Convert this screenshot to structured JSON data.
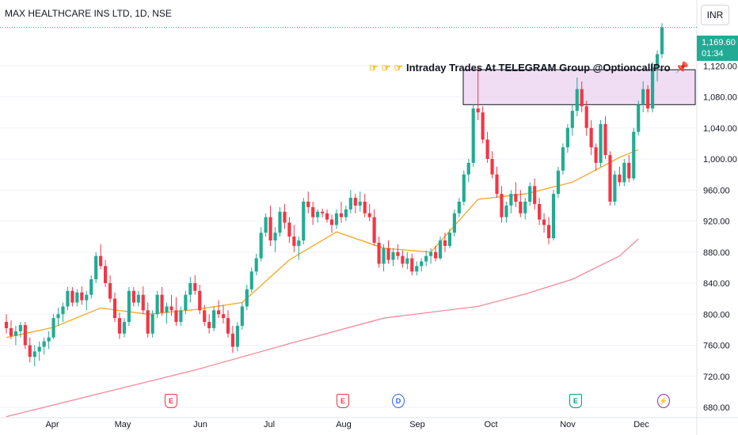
{
  "header": {
    "symbol_title": "MAX HEALTHCARE INS LTD, 1D, NSE",
    "currency_button": "INR"
  },
  "price_badge": {
    "price": "1,169.60",
    "countdown": "01:34"
  },
  "annotation": {
    "text": "Intraday Trades At TELEGRAM Group @OptioncallPro"
  },
  "events": [
    {
      "label": "E",
      "type": "earnings",
      "color": "#f23645"
    },
    {
      "label": "E",
      "type": "earnings",
      "color": "#f23645"
    },
    {
      "label": "D",
      "type": "dividend",
      "color": "#2962ff"
    },
    {
      "label": "E",
      "type": "earnings",
      "color": "#089981"
    },
    {
      "label": "⚡",
      "type": "split",
      "color": "#9c27b0"
    }
  ],
  "colors": {
    "up": "#22ab94",
    "down": "#f23645",
    "ma_fast": "#f5a623",
    "ma_slow": "#f28b9b",
    "zone_fill": "#ecd3f0",
    "grid": "#f0f3fa"
  },
  "chart_data": {
    "type": "candlestick",
    "title": "MAX HEALTHCARE INS LTD, 1D, NSE",
    "y_axis": {
      "ticks": [
        "1,120.00",
        "1,080.00",
        "1,040.00",
        "1,000.00",
        "960.00",
        "920.00",
        "880.00",
        "840.00",
        "800.00",
        "760.00",
        "720.00",
        "680.00"
      ],
      "range": [
        665,
        1190
      ]
    },
    "x_axis": {
      "labels": [
        "Apr",
        "May",
        "Jun",
        "Jul",
        "Aug",
        "Sep",
        "Oct",
        "Nov",
        "Dec"
      ]
    },
    "last_price": 1169.6,
    "resistance_zone": [
      1070,
      1115
    ],
    "candles": [
      [
        790,
        800,
        775,
        782
      ],
      [
        782,
        792,
        768,
        772
      ],
      [
        772,
        785,
        760,
        778
      ],
      [
        778,
        790,
        770,
        786
      ],
      [
        786,
        790,
        755,
        760
      ],
      [
        760,
        770,
        738,
        745
      ],
      [
        745,
        760,
        733,
        752
      ],
      [
        752,
        765,
        740,
        758
      ],
      [
        758,
        770,
        748,
        765
      ],
      [
        765,
        778,
        755,
        770
      ],
      [
        770,
        800,
        768,
        795
      ],
      [
        795,
        808,
        785,
        800
      ],
      [
        800,
        815,
        790,
        810
      ],
      [
        810,
        835,
        805,
        830
      ],
      [
        830,
        835,
        810,
        815
      ],
      [
        815,
        832,
        810,
        828
      ],
      [
        828,
        836,
        812,
        818
      ],
      [
        818,
        830,
        805,
        825
      ],
      [
        825,
        850,
        820,
        845
      ],
      [
        845,
        880,
        840,
        875
      ],
      [
        875,
        890,
        858,
        862
      ],
      [
        862,
        870,
        835,
        840
      ],
      [
        840,
        850,
        815,
        820
      ],
      [
        820,
        828,
        790,
        795
      ],
      [
        795,
        802,
        768,
        775
      ],
      [
        775,
        795,
        770,
        790
      ],
      [
        790,
        835,
        785,
        830
      ],
      [
        830,
        835,
        810,
        815
      ],
      [
        815,
        830,
        810,
        825
      ],
      [
        825,
        836,
        800,
        805
      ],
      [
        805,
        815,
        770,
        775
      ],
      [
        775,
        805,
        770,
        800
      ],
      [
        800,
        830,
        795,
        825
      ],
      [
        825,
        835,
        798,
        802
      ],
      [
        802,
        815,
        788,
        810
      ],
      [
        810,
        825,
        798,
        805
      ],
      [
        805,
        822,
        785,
        790
      ],
      [
        790,
        810,
        785,
        805
      ],
      [
        805,
        830,
        800,
        825
      ],
      [
        825,
        848,
        815,
        840
      ],
      [
        840,
        850,
        825,
        830
      ],
      [
        830,
        838,
        800,
        805
      ],
      [
        805,
        812,
        785,
        790
      ],
      [
        790,
        800,
        775,
        782
      ],
      [
        782,
        810,
        778,
        805
      ],
      [
        805,
        818,
        795,
        800
      ],
      [
        800,
        812,
        788,
        795
      ],
      [
        795,
        805,
        770,
        775
      ],
      [
        775,
        785,
        750,
        758
      ],
      [
        758,
        790,
        752,
        785
      ],
      [
        785,
        815,
        780,
        810
      ],
      [
        810,
        838,
        805,
        832
      ],
      [
        832,
        860,
        828,
        855
      ],
      [
        855,
        878,
        850,
        872
      ],
      [
        872,
        912,
        868,
        905
      ],
      [
        905,
        930,
        900,
        925
      ],
      [
        925,
        940,
        888,
        895
      ],
      [
        895,
        912,
        880,
        905
      ],
      [
        905,
        938,
        900,
        932
      ],
      [
        932,
        942,
        910,
        918
      ],
      [
        918,
        925,
        892,
        900
      ],
      [
        900,
        915,
        880,
        888
      ],
      [
        888,
        900,
        870,
        895
      ],
      [
        895,
        950,
        890,
        945
      ],
      [
        945,
        958,
        930,
        938
      ],
      [
        938,
        945,
        915,
        925
      ],
      [
        925,
        935,
        918,
        932
      ],
      [
        932,
        936,
        925,
        930
      ],
      [
        930,
        935,
        918,
        922
      ],
      [
        922,
        928,
        905,
        915
      ],
      [
        915,
        935,
        910,
        930
      ],
      [
        930,
        945,
        918,
        925
      ],
      [
        925,
        940,
        920,
        935
      ],
      [
        935,
        960,
        930,
        950
      ],
      [
        950,
        955,
        930,
        940
      ],
      [
        940,
        958,
        932,
        945
      ],
      [
        945,
        955,
        925,
        930
      ],
      [
        930,
        942,
        920,
        925
      ],
      [
        925,
        935,
        888,
        892
      ],
      [
        892,
        900,
        860,
        865
      ],
      [
        865,
        890,
        855,
        885
      ],
      [
        885,
        895,
        865,
        870
      ],
      [
        870,
        885,
        862,
        880
      ],
      [
        880,
        890,
        870,
        875
      ],
      [
        875,
        882,
        860,
        865
      ],
      [
        865,
        880,
        858,
        872
      ],
      [
        872,
        878,
        850,
        855
      ],
      [
        855,
        868,
        850,
        862
      ],
      [
        862,
        872,
        855,
        868
      ],
      [
        868,
        882,
        862,
        875
      ],
      [
        875,
        885,
        865,
        880
      ],
      [
        880,
        888,
        868,
        872
      ],
      [
        872,
        900,
        870,
        895
      ],
      [
        895,
        905,
        880,
        888
      ],
      [
        888,
        910,
        885,
        905
      ],
      [
        905,
        935,
        900,
        930
      ],
      [
        930,
        950,
        925,
        945
      ],
      [
        945,
        985,
        940,
        980
      ],
      [
        980,
        1000,
        970,
        995
      ],
      [
        995,
        1070,
        990,
        1065
      ],
      [
        1065,
        1120,
        1050,
        1060
      ],
      [
        1060,
        1068,
        1020,
        1025
      ],
      [
        1025,
        1035,
        995,
        1000
      ],
      [
        1000,
        1010,
        975,
        980
      ],
      [
        980,
        990,
        950,
        955
      ],
      [
        955,
        965,
        918,
        925
      ],
      [
        925,
        945,
        918,
        940
      ],
      [
        940,
        960,
        930,
        955
      ],
      [
        955,
        970,
        938,
        945
      ],
      [
        945,
        960,
        925,
        930
      ],
      [
        930,
        950,
        922,
        945
      ],
      [
        945,
        970,
        940,
        965
      ],
      [
        965,
        975,
        935,
        942
      ],
      [
        942,
        950,
        915,
        922
      ],
      [
        922,
        930,
        905,
        915
      ],
      [
        915,
        925,
        890,
        898
      ],
      [
        898,
        960,
        895,
        955
      ],
      [
        955,
        990,
        950,
        985
      ],
      [
        985,
        1020,
        980,
        1015
      ],
      [
        1015,
        1045,
        1008,
        1040
      ],
      [
        1040,
        1070,
        1030,
        1062
      ],
      [
        1062,
        1105,
        1055,
        1090
      ],
      [
        1090,
        1100,
        1060,
        1068
      ],
      [
        1068,
        1075,
        1030,
        1040
      ],
      [
        1040,
        1050,
        1005,
        1015
      ],
      [
        1015,
        1020,
        985,
        995
      ],
      [
        995,
        1050,
        990,
        1045
      ],
      [
        1045,
        1055,
        1000,
        1005
      ],
      [
        1005,
        1010,
        940,
        945
      ],
      [
        945,
        985,
        940,
        980
      ],
      [
        980,
        990,
        965,
        970
      ],
      [
        970,
        1000,
        965,
        995
      ],
      [
        995,
        1005,
        970,
        975
      ],
      [
        975,
        1040,
        972,
        1035
      ],
      [
        1035,
        1075,
        1030,
        1070
      ],
      [
        1070,
        1100,
        1060,
        1090
      ],
      [
        1090,
        1095,
        1060,
        1065
      ],
      [
        1065,
        1125,
        1060,
        1118
      ],
      [
        1118,
        1140,
        1100,
        1135
      ],
      [
        1135,
        1175,
        1130,
        1169.6
      ]
    ],
    "ma_fast": [
      [
        0,
        770
      ],
      [
        10,
        783
      ],
      [
        20,
        808
      ],
      [
        30,
        800
      ],
      [
        40,
        806
      ],
      [
        50,
        815
      ],
      [
        60,
        870
      ],
      [
        70,
        906
      ],
      [
        80,
        885
      ],
      [
        90,
        880
      ],
      [
        100,
        948
      ],
      [
        110,
        955
      ],
      [
        120,
        970
      ],
      [
        130,
        1002
      ],
      [
        134,
        1012
      ]
    ],
    "ma_slow": [
      [
        0,
        668
      ],
      [
        20,
        698
      ],
      [
        40,
        728
      ],
      [
        60,
        762
      ],
      [
        80,
        795
      ],
      [
        100,
        810
      ],
      [
        110,
        826
      ],
      [
        120,
        845
      ],
      [
        130,
        875
      ],
      [
        134,
        897
      ]
    ]
  }
}
